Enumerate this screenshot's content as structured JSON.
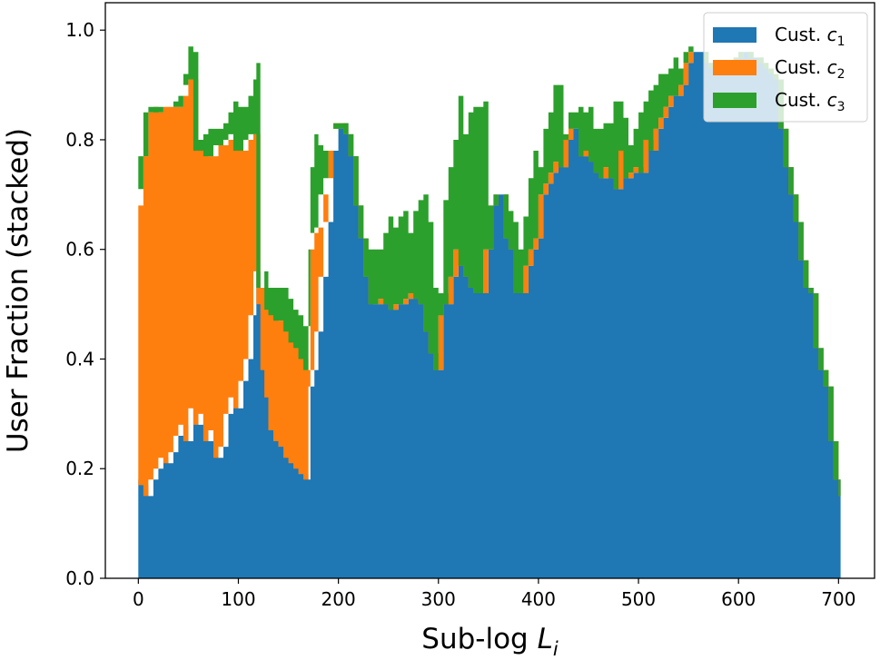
{
  "chart_data": {
    "type": "area",
    "stacked": true,
    "xlabel": "Sub-log L_i",
    "xlabel_base": "Sub-log ",
    "xlabel_var": "L",
    "xlabel_sub": "i",
    "ylabel": "User Fraction (stacked)",
    "xlim": [
      -33,
      736
    ],
    "ylim": [
      0,
      1.05
    ],
    "xticks": [
      0,
      100,
      200,
      300,
      400,
      500,
      600,
      700
    ],
    "yticks": [
      0.0,
      0.2,
      0.4,
      0.6,
      0.8,
      1.0
    ],
    "ytick_labels": [
      "0.0",
      "0.2",
      "0.4",
      "0.6",
      "0.8",
      "1.0"
    ],
    "grid": false,
    "legend_position": "top-right",
    "x": [
      0,
      5,
      10,
      15,
      20,
      25,
      30,
      35,
      40,
      45,
      50,
      55,
      60,
      65,
      70,
      75,
      80,
      85,
      90,
      95,
      100,
      105,
      110,
      115,
      118,
      122,
      126,
      130,
      135,
      140,
      145,
      150,
      155,
      160,
      165,
      170,
      172,
      176,
      180,
      185,
      190,
      195,
      200,
      205,
      210,
      215,
      220,
      225,
      230,
      235,
      240,
      245,
      250,
      255,
      260,
      265,
      270,
      275,
      280,
      285,
      290,
      295,
      300,
      305,
      310,
      315,
      320,
      325,
      330,
      335,
      340,
      345,
      350,
      355,
      360,
      365,
      370,
      375,
      380,
      385,
      390,
      395,
      400,
      405,
      410,
      415,
      420,
      425,
      430,
      435,
      440,
      445,
      450,
      455,
      460,
      465,
      470,
      475,
      480,
      485,
      490,
      495,
      500,
      505,
      510,
      515,
      520,
      525,
      530,
      535,
      540,
      545,
      550,
      555,
      560,
      565,
      570,
      575,
      580,
      585,
      590,
      595,
      600,
      605,
      610,
      615,
      620,
      625,
      630,
      635,
      640,
      645,
      650,
      655,
      660,
      665,
      670,
      675,
      680,
      685,
      690,
      695,
      700,
      702
    ],
    "series": [
      {
        "name": "Cust. c_1",
        "label_base": "Cust. ",
        "label_var": "c",
        "label_sub": "1",
        "color": "#1f77b4",
        "values": [
          0.18,
          0.17,
          0.15,
          0.18,
          0.2,
          0.22,
          0.21,
          0.23,
          0.26,
          0.28,
          0.25,
          0.31,
          0.28,
          0.3,
          0.25,
          0.27,
          0.22,
          0.24,
          0.3,
          0.33,
          0.31,
          0.36,
          0.4,
          0.48,
          0.56,
          0.5,
          0.38,
          0.33,
          0.27,
          0.25,
          0.24,
          0.22,
          0.21,
          0.2,
          0.19,
          0.18,
          0.35,
          0.38,
          0.45,
          0.55,
          0.65,
          0.78,
          0.82,
          0.83,
          0.81,
          0.77,
          0.68,
          0.62,
          0.55,
          0.5,
          0.5,
          0.51,
          0.5,
          0.49,
          0.5,
          0.5,
          0.51,
          0.52,
          0.51,
          0.5,
          0.45,
          0.41,
          0.38,
          0.52,
          0.5,
          0.55,
          0.6,
          0.57,
          0.55,
          0.53,
          0.52,
          0.52,
          0.6,
          0.68,
          0.7,
          0.7,
          0.62,
          0.6,
          0.52,
          0.52,
          0.57,
          0.6,
          0.62,
          0.7,
          0.72,
          0.74,
          0.76,
          0.75,
          0.8,
          0.82,
          0.82,
          0.77,
          0.78,
          0.76,
          0.74,
          0.73,
          0.75,
          0.73,
          0.71,
          0.78,
          0.73,
          0.74,
          0.75,
          0.74,
          0.8,
          0.78,
          0.82,
          0.84,
          0.86,
          0.88,
          0.88,
          0.9,
          0.94,
          0.96,
          0.96,
          0.96,
          0.94,
          0.93,
          0.93,
          0.92,
          0.93,
          0.94,
          0.95,
          0.96,
          0.96,
          0.95,
          0.95,
          0.94,
          0.93,
          0.92,
          0.91,
          0.82,
          0.75,
          0.7,
          0.65,
          0.58,
          0.53,
          0.52,
          0.42,
          0.38,
          0.35,
          0.25,
          0.18,
          0.15
        ]
      },
      {
        "name": "Cust. c_2",
        "label_base": "Cust. ",
        "label_var": "c",
        "label_sub": "2",
        "color": "#ff7f0e",
        "values": [
          0.5,
          0.6,
          0.7,
          0.68,
          0.65,
          0.64,
          0.65,
          0.63,
          0.6,
          0.6,
          0.67,
          0.6,
          0.5,
          0.48,
          0.52,
          0.5,
          0.57,
          0.55,
          0.5,
          0.48,
          0.47,
          0.42,
          0.4,
          0.33,
          0.25,
          0.03,
          0.15,
          0.16,
          0.21,
          0.22,
          0.23,
          0.23,
          0.22,
          0.22,
          0.21,
          0.2,
          0.25,
          0.25,
          0.19,
          0.15,
          0.08,
          0.05,
          0.0,
          0.0,
          0.0,
          0.0,
          0.0,
          0.0,
          0.0,
          0.0,
          0.0,
          0.0,
          0.0,
          0.0,
          0.0,
          0.0,
          0.0,
          0.0,
          0.0,
          0.0,
          0.0,
          0.0,
          0.0,
          0.0,
          0.0,
          0.0,
          0.0,
          0.0,
          0.0,
          0.0,
          0.0,
          0.0,
          0.0,
          0.0,
          0.0,
          0.0,
          0.0,
          0.0,
          0.0,
          0.0,
          0.0,
          0.0,
          0.0,
          0.0,
          0.0,
          0.0,
          0.0,
          0.0,
          0.0,
          0.0,
          0.0,
          0.0,
          0.0,
          0.0,
          0.0,
          0.0,
          0.0,
          0.0,
          0.0,
          0.0,
          0.0,
          0.0,
          0.0,
          0.0,
          0.0,
          0.0,
          0.0,
          0.0,
          0.0,
          0.0,
          0.0,
          0.0,
          0.0,
          0.0,
          0.0,
          0.0,
          0.0,
          0.0,
          0.0,
          0.0,
          0.0,
          0.0,
          0.0,
          0.0,
          0.0,
          0.0,
          0.0,
          0.0,
          0.0,
          0.0,
          0.0,
          0.0,
          0.0,
          0.0,
          0.0,
          0.0,
          0.0,
          0.0,
          0.0,
          0.0,
          0.0,
          0.0,
          0.0,
          0.0
        ]
      },
      {
        "name": "Cust. c_3",
        "label_base": "Cust. ",
        "label_var": "c",
        "label_sub": "3",
        "color": "#2ca02c",
        "values": [
          0.03,
          0.0,
          0.0,
          0.0,
          0.0,
          0.0,
          0.0,
          0.01,
          0.0,
          0.02,
          0.05,
          0.05,
          0.02,
          0.03,
          0.05,
          0.05,
          0.03,
          0.04,
          0.05,
          0.06,
          0.08,
          0.08,
          0.08,
          0.1,
          0.13,
          0.0,
          0.03,
          0.04,
          0.05,
          0.06,
          0.06,
          0.06,
          0.06,
          0.06,
          0.06,
          0.08,
          0.15,
          0.18,
          0.15,
          0.08,
          0.1,
          0.0,
          0.0,
          0.0,
          0.0,
          0.0,
          0.0,
          0.0,
          0.05,
          0.1,
          0.1,
          0.12,
          0.16,
          0.15,
          0.16,
          0.17,
          0.12,
          0.15,
          0.18,
          0.2,
          0.2,
          0.12,
          0.1,
          0.17,
          0.25,
          0.25,
          0.28,
          0.24,
          0.3,
          0.33,
          0.34,
          0.35,
          0.0,
          0.0,
          0.0,
          0.0,
          0.05,
          0.05,
          0.08,
          0.14,
          0.16,
          0.18,
          0.13,
          0.12,
          0.13,
          0.16,
          0.14,
          0.06,
          0.05,
          0.03,
          0.04,
          0.08,
          0.08,
          0.06,
          0.08,
          0.1,
          0.08,
          0.14,
          0.16,
          0.06,
          0.06,
          0.08,
          0.1,
          0.13,
          0.09,
          0.12,
          0.1,
          0.08,
          0.07,
          0.07,
          0.05,
          0.06,
          0.03,
          0.0,
          0.0,
          0.0,
          0.0,
          0.0,
          0.0,
          0.0,
          0.0,
          0.0,
          0.0,
          0.0,
          0.0,
          0.0,
          0.0,
          0.0,
          0.0,
          0.0,
          0.0,
          0.0,
          0.0,
          0.0,
          0.0,
          0.0,
          0.0,
          0.0,
          0.0,
          0.0,
          0.0,
          0.0,
          0.0,
          0.0
        ]
      }
    ]
  }
}
